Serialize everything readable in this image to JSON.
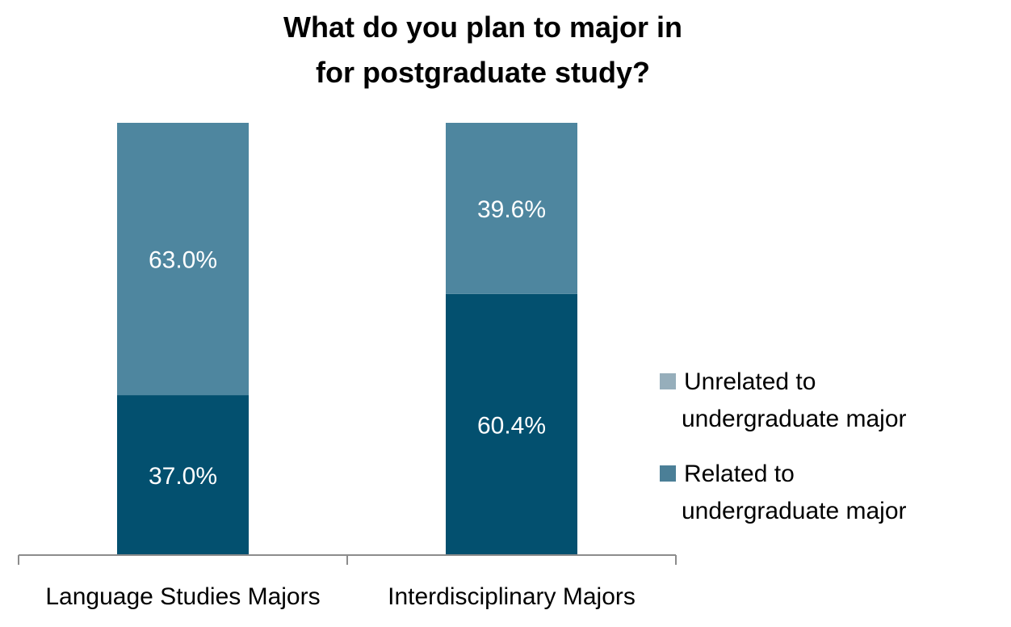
{
  "chart_data": {
    "type": "bar",
    "stacked": true,
    "title_lines": [
      "What do you plan to major in",
      "for postgraduate study?"
    ],
    "categories": [
      "Language Studies Majors",
      "Interdisciplinary Majors"
    ],
    "series": [
      {
        "name": "Related to undergraduate major",
        "legend_lines": [
          "Related to",
          "undergraduate major"
        ],
        "values": [
          37.0,
          60.4
        ],
        "labels": [
          "37.0%",
          "60.4%"
        ],
        "color": "#03506F"
      },
      {
        "name": "Unrelated to undergraduate major",
        "legend_lines": [
          "Unrelated to",
          "undergraduate major"
        ],
        "values": [
          63.0,
          39.6
        ],
        "labels": [
          "63.0%",
          "39.6%"
        ],
        "color": "#4E869F"
      }
    ],
    "legend_order": [
      1,
      0
    ],
    "legend_swatch_colors": [
      "#96AEBB",
      "#4B7F97"
    ],
    "ylim": [
      0,
      100
    ],
    "legend_position": "right",
    "grid": false
  }
}
